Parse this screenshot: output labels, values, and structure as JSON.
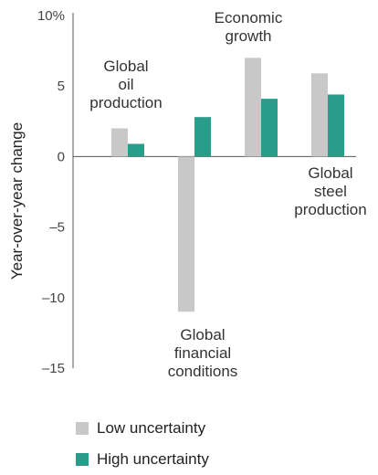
{
  "chart_data": {
    "type": "bar",
    "categories": [
      "Global oil production",
      "Global financial conditions",
      "Economic growth",
      "Global steel production"
    ],
    "category_labels": [
      [
        "Global",
        "oil",
        "production"
      ],
      [
        "Global",
        "financial",
        "conditions"
      ],
      [
        "Economic",
        "growth"
      ],
      [
        "Global",
        "steel",
        "production"
      ]
    ],
    "series": [
      {
        "name": "Low uncertainty",
        "values": [
          2.0,
          -11.0,
          7.0,
          5.9
        ],
        "color": "#c8c8c8"
      },
      {
        "name": "High uncertainty",
        "values": [
          0.9,
          2.8,
          4.1,
          4.4
        ],
        "color": "#2a9d8a"
      }
    ],
    "ylabel": "Year-over-year change",
    "ylim": [
      -15,
      10
    ],
    "yticks": [
      {
        "value": 10,
        "label": "10%"
      },
      {
        "value": 5,
        "label": "5"
      },
      {
        "value": 0,
        "label": "0"
      },
      {
        "value": -5,
        "label": "–5"
      },
      {
        "value": -10,
        "label": "–10"
      },
      {
        "value": -15,
        "label": "–15"
      }
    ],
    "grid": false,
    "legend_position": "bottom-left"
  }
}
